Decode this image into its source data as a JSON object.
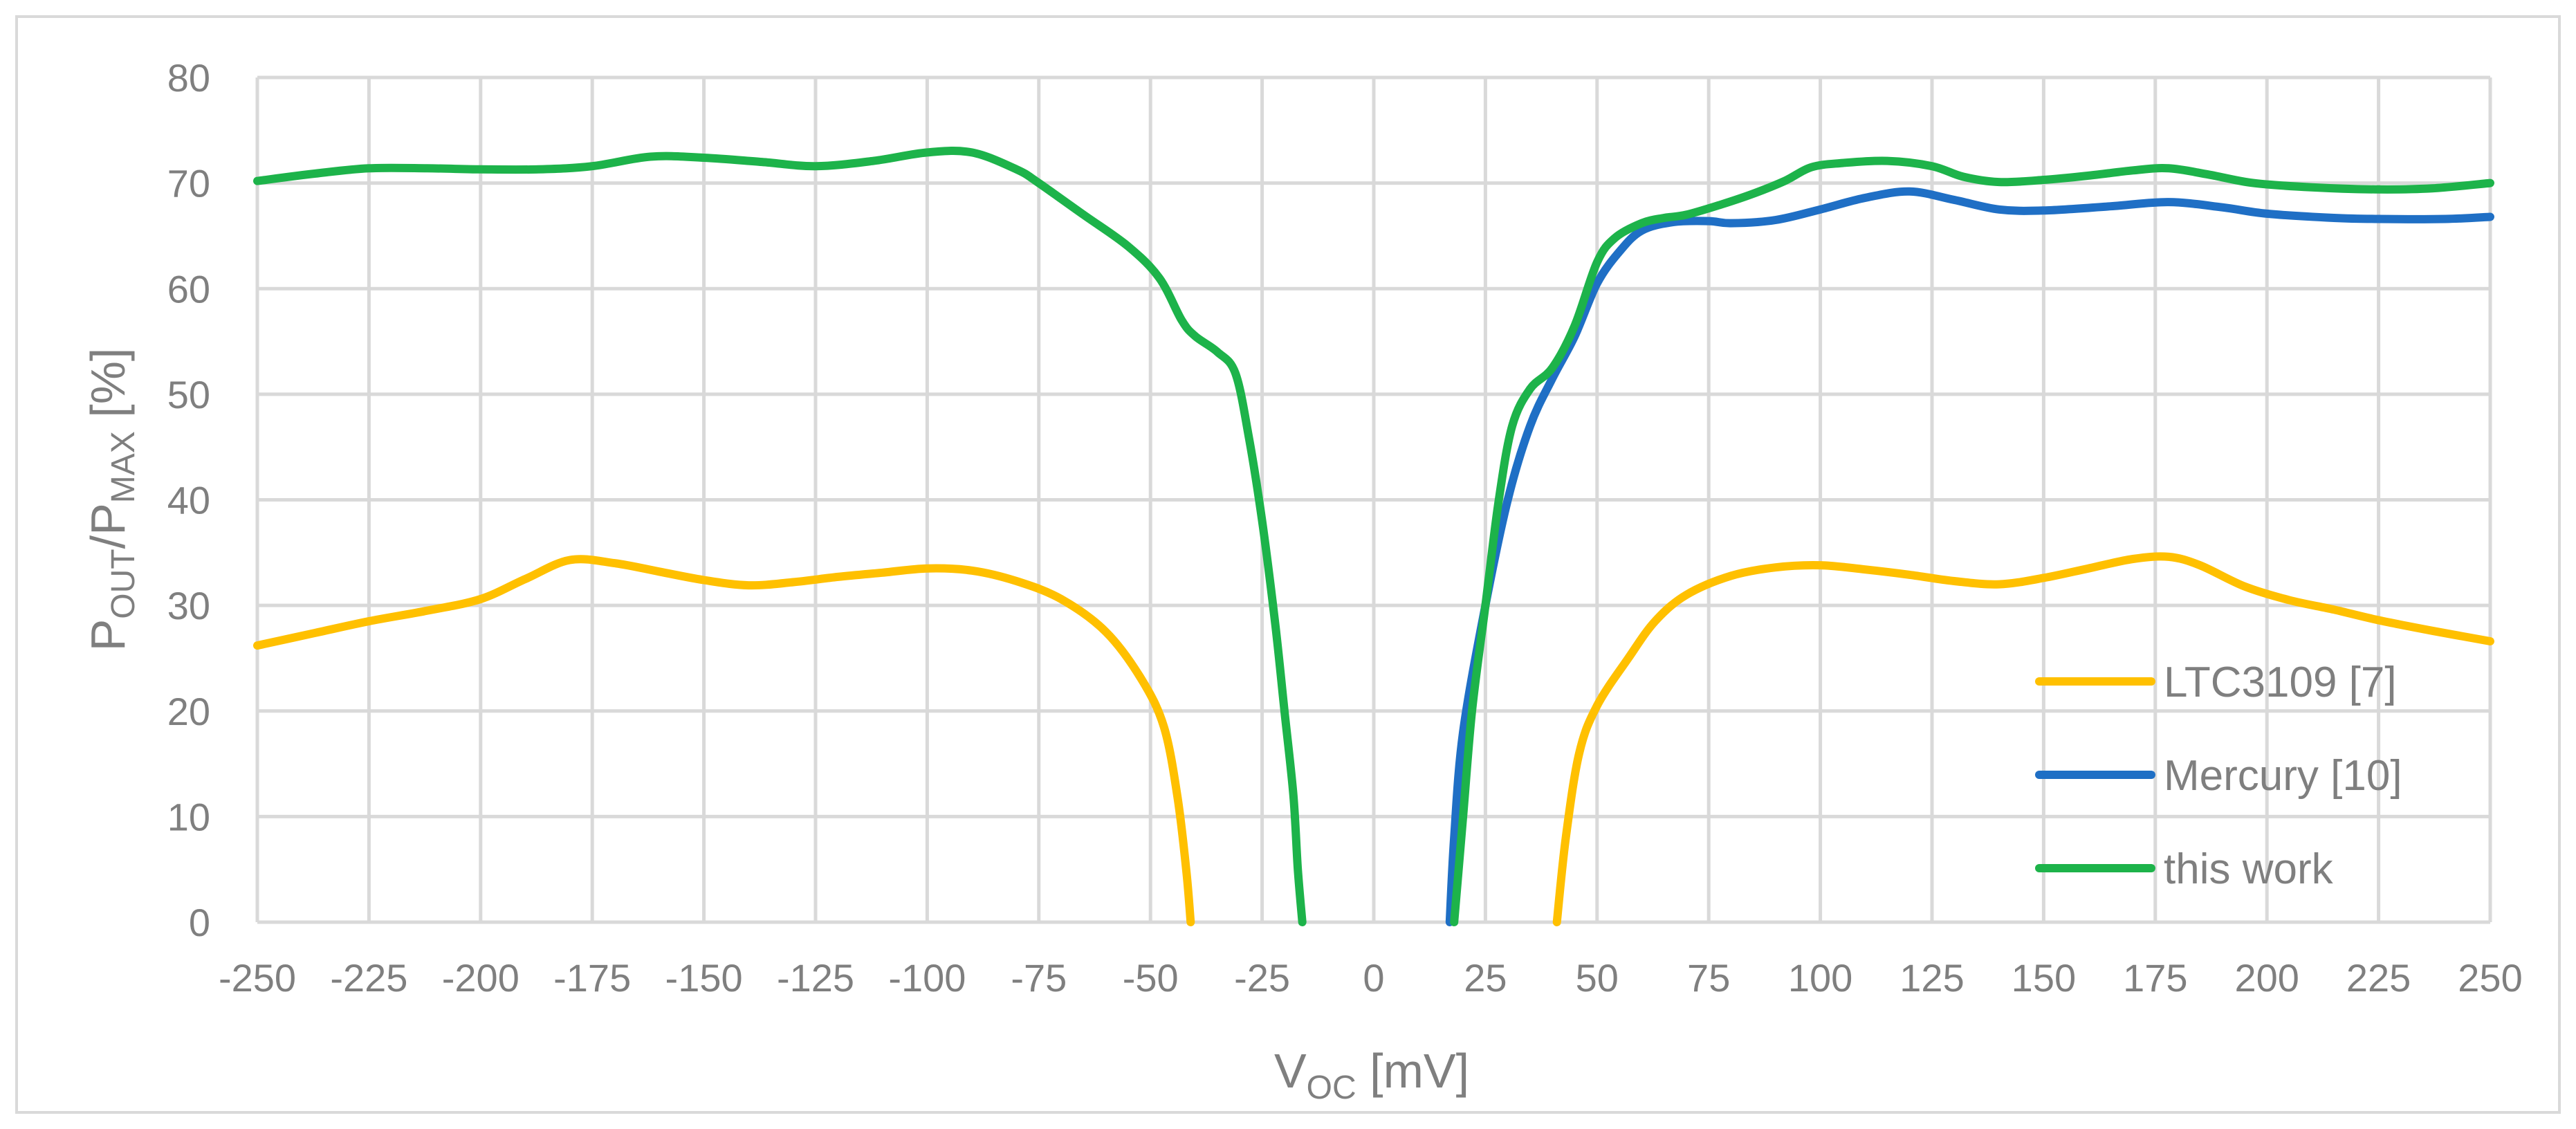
{
  "chart_data": {
    "type": "line",
    "x_axis": {
      "label_main": "V",
      "label_sub": "OC",
      "label_rest": " [mV]",
      "range": [
        -250,
        250
      ],
      "ticks": [
        -250,
        -225,
        -200,
        -175,
        -150,
        -125,
        -100,
        -75,
        -50,
        -25,
        0,
        25,
        50,
        75,
        100,
        125,
        150,
        175,
        200,
        225,
        250
      ],
      "tick_labels": [
        "-250",
        "-225",
        "-200",
        "-175",
        "-150",
        "-125",
        "-100",
        "-75",
        "-50",
        "-25",
        "0",
        "25",
        "50",
        "75",
        "100",
        "125",
        "150",
        "175",
        "200",
        "225",
        "250"
      ]
    },
    "y_axis": {
      "label_p1": "P",
      "label_sub1": "OUT",
      "label_mid": "/P",
      "label_sub2": "MAX",
      "label_rest": " [%]",
      "range": [
        0,
        80
      ],
      "ticks": [
        0,
        10,
        20,
        30,
        40,
        50,
        60,
        70,
        80
      ],
      "tick_labels": [
        "0",
        "10",
        "20",
        "30",
        "40",
        "50",
        "60",
        "70",
        "80"
      ]
    },
    "grid": true,
    "legend_position": "bottom-right",
    "series": [
      {
        "name": "LTC3109 [7]",
        "color": "#ffc000",
        "segments": [
          [
            [
              -250,
              26.2
            ],
            [
              -237,
              27.4
            ],
            [
              -225,
              28.5
            ],
            [
              -212,
              29.5
            ],
            [
              -200,
              30.6
            ],
            [
              -190,
              32.5
            ],
            [
              -180,
              34.3
            ],
            [
              -170,
              34.0
            ],
            [
              -160,
              33.2
            ],
            [
              -150,
              32.4
            ],
            [
              -140,
              31.9
            ],
            [
              -130,
              32.2
            ],
            [
              -120,
              32.7
            ],
            [
              -110,
              33.1
            ],
            [
              -100,
              33.5
            ],
            [
              -90,
              33.3
            ],
            [
              -80,
              32.3
            ],
            [
              -70,
              30.6
            ],
            [
              -60,
              27.5
            ],
            [
              -52,
              23.0
            ],
            [
              -47,
              18.5
            ],
            [
              -44,
              12.0
            ],
            [
              -42,
              5.0
            ],
            [
              -41,
              0
            ]
          ],
          [
            [
              41,
              0
            ],
            [
              43,
              8.0
            ],
            [
              46,
              16.0
            ],
            [
              50,
              20.5
            ],
            [
              57,
              25.0
            ],
            [
              63,
              28.5
            ],
            [
              70,
              31.0
            ],
            [
              80,
              32.8
            ],
            [
              90,
              33.6
            ],
            [
              100,
              33.8
            ],
            [
              110,
              33.4
            ],
            [
              120,
              32.9
            ],
            [
              130,
              32.3
            ],
            [
              140,
              32.0
            ],
            [
              150,
              32.6
            ],
            [
              160,
              33.5
            ],
            [
              170,
              34.4
            ],
            [
              178,
              34.6
            ],
            [
              185,
              33.8
            ],
            [
              195,
              31.8
            ],
            [
              205,
              30.5
            ],
            [
              215,
              29.6
            ],
            [
              225,
              28.6
            ],
            [
              237,
              27.6
            ],
            [
              250,
              26.6
            ]
          ]
        ]
      },
      {
        "name": "Mercury [10]",
        "color": "#1f6fc5",
        "segments": [
          [
            [
              17,
              0
            ],
            [
              18,
              8.0
            ],
            [
              20,
              18.0
            ],
            [
              25,
              30.0
            ],
            [
              30,
              40.0
            ],
            [
              35,
              47.0
            ],
            [
              40,
              51.5
            ],
            [
              45,
              55.5
            ],
            [
              50,
              60.5
            ],
            [
              55,
              63.5
            ],
            [
              60,
              65.5
            ],
            [
              67,
              66.3
            ],
            [
              75,
              66.4
            ],
            [
              80,
              66.2
            ],
            [
              90,
              66.5
            ],
            [
              100,
              67.5
            ],
            [
              110,
              68.6
            ],
            [
              120,
              69.2
            ],
            [
              130,
              68.4
            ],
            [
              140,
              67.5
            ],
            [
              150,
              67.4
            ],
            [
              165,
              67.8
            ],
            [
              178,
              68.2
            ],
            [
              190,
              67.7
            ],
            [
              200,
              67.1
            ],
            [
              215,
              66.7
            ],
            [
              225,
              66.6
            ],
            [
              240,
              66.6
            ],
            [
              250,
              66.8
            ]
          ]
        ]
      },
      {
        "name": "this work",
        "color": "#1db34a",
        "segments": [
          [
            [
              -250,
              70.2
            ],
            [
              -237,
              70.9
            ],
            [
              -225,
              71.4
            ],
            [
              -212,
              71.4
            ],
            [
              -200,
              71.3
            ],
            [
              -187,
              71.3
            ],
            [
              -175,
              71.6
            ],
            [
              -162,
              72.5
            ],
            [
              -150,
              72.4
            ],
            [
              -137,
              72.0
            ],
            [
              -125,
              71.6
            ],
            [
              -112,
              72.1
            ],
            [
              -100,
              72.9
            ],
            [
              -90,
              72.9
            ],
            [
              -80,
              71.3
            ],
            [
              -75,
              70.0
            ],
            [
              -65,
              67.0
            ],
            [
              -55,
              64.0
            ],
            [
              -48,
              61.0
            ],
            [
              -43,
              57.0
            ],
            [
              -40,
              55.5
            ],
            [
              -35,
              54.0
            ],
            [
              -31,
              52.0
            ],
            [
              -28,
              46.0
            ],
            [
              -25,
              38.0
            ],
            [
              -22,
              28.0
            ],
            [
              -20,
              20.0
            ],
            [
              -18,
              12.0
            ],
            [
              -17,
              5.0
            ],
            [
              -16,
              0
            ]
          ],
          [
            [
              18,
              0
            ],
            [
              20,
              10.0
            ],
            [
              22,
              20.0
            ],
            [
              25,
              30.0
            ],
            [
              28,
              40.0
            ],
            [
              31,
              47.0
            ],
            [
              35,
              50.5
            ],
            [
              40,
              52.5
            ],
            [
              45,
              56.5
            ],
            [
              50,
              62.5
            ],
            [
              54,
              64.8
            ],
            [
              60,
              66.2
            ],
            [
              65,
              66.7
            ],
            [
              70,
              67.0
            ],
            [
              78,
              68.0
            ],
            [
              85,
              69.0
            ],
            [
              92,
              70.2
            ],
            [
              98,
              71.5
            ],
            [
              105,
              71.9
            ],
            [
              115,
              72.1
            ],
            [
              125,
              71.6
            ],
            [
              132,
              70.6
            ],
            [
              140,
              70.1
            ],
            [
              150,
              70.3
            ],
            [
              160,
              70.7
            ],
            [
              170,
              71.2
            ],
            [
              178,
              71.4
            ],
            [
              187,
              70.8
            ],
            [
              197,
              70.0
            ],
            [
              210,
              69.6
            ],
            [
              225,
              69.4
            ],
            [
              237,
              69.5
            ],
            [
              250,
              70.0
            ]
          ]
        ]
      }
    ]
  }
}
